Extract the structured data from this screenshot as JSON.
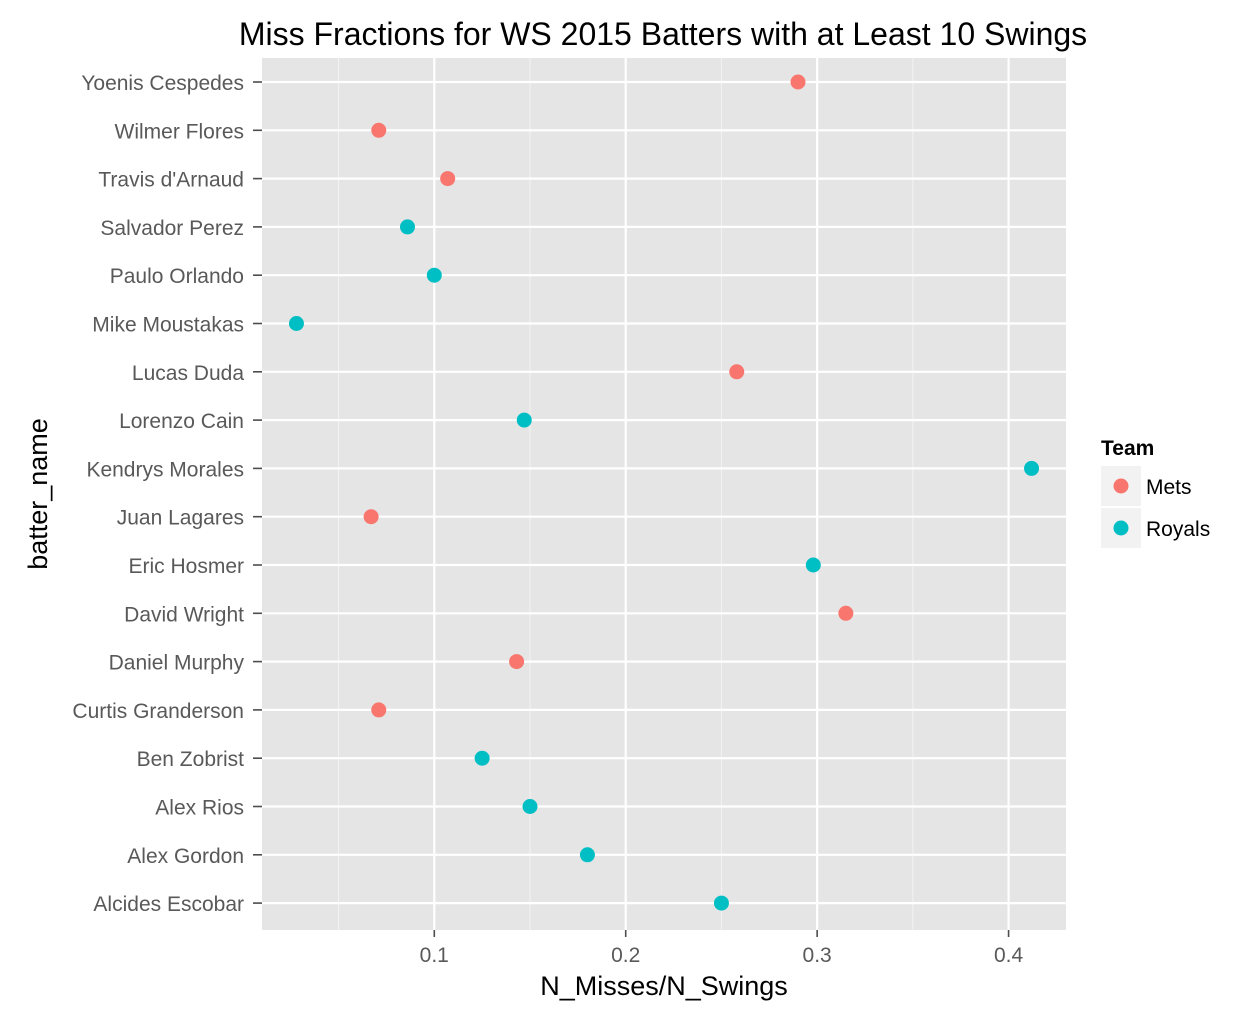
{
  "chart_data": {
    "type": "scatter",
    "title": "Miss Fractions for WS 2015 Batters with at Least 10 Swings",
    "xlabel": "N_Misses/N_Swings",
    "ylabel": "batter_name",
    "xlim": [
      0.01,
      0.43
    ],
    "x_ticks": [
      0.1,
      0.2,
      0.3,
      0.4
    ],
    "x_tick_labels": [
      "0.1",
      "0.2",
      "0.3",
      "0.4"
    ],
    "grid": true,
    "categories": [
      "Yoenis Cespedes",
      "Wilmer Flores",
      "Travis d'Arnaud",
      "Salvador Perez",
      "Paulo Orlando",
      "Mike Moustakas",
      "Lucas Duda",
      "Lorenzo Cain",
      "Kendrys Morales",
      "Juan Lagares",
      "Eric Hosmer",
      "David Wright",
      "Daniel Murphy",
      "Curtis Granderson",
      "Ben Zobrist",
      "Alex Rios",
      "Alex Gordon",
      "Alcides Escobar"
    ],
    "points": [
      {
        "batter": "Yoenis Cespedes",
        "value": 0.29,
        "team": "Mets"
      },
      {
        "batter": "Wilmer Flores",
        "value": 0.071,
        "team": "Mets"
      },
      {
        "batter": "Travis d'Arnaud",
        "value": 0.107,
        "team": "Mets"
      },
      {
        "batter": "Salvador Perez",
        "value": 0.086,
        "team": "Royals"
      },
      {
        "batter": "Paulo Orlando",
        "value": 0.1,
        "team": "Royals"
      },
      {
        "batter": "Mike Moustakas",
        "value": 0.028,
        "team": "Royals"
      },
      {
        "batter": "Lucas Duda",
        "value": 0.258,
        "team": "Mets"
      },
      {
        "batter": "Lorenzo Cain",
        "value": 0.147,
        "team": "Royals"
      },
      {
        "batter": "Kendrys Morales",
        "value": 0.412,
        "team": "Royals"
      },
      {
        "batter": "Juan Lagares",
        "value": 0.067,
        "team": "Mets"
      },
      {
        "batter": "Eric Hosmer",
        "value": 0.298,
        "team": "Royals"
      },
      {
        "batter": "David Wright",
        "value": 0.315,
        "team": "Mets"
      },
      {
        "batter": "Daniel Murphy",
        "value": 0.143,
        "team": "Mets"
      },
      {
        "batter": "Curtis Granderson",
        "value": 0.071,
        "team": "Mets"
      },
      {
        "batter": "Ben Zobrist",
        "value": 0.125,
        "team": "Royals"
      },
      {
        "batter": "Alex Rios",
        "value": 0.15,
        "team": "Royals"
      },
      {
        "batter": "Alex Gordon",
        "value": 0.18,
        "team": "Royals"
      },
      {
        "batter": "Alcides Escobar",
        "value": 0.25,
        "team": "Royals"
      }
    ],
    "legend": {
      "title": "Team",
      "position": "right",
      "items": [
        {
          "label": "Mets",
          "color": "#f8766d"
        },
        {
          "label": "Royals",
          "color": "#00bfc4"
        }
      ]
    }
  }
}
